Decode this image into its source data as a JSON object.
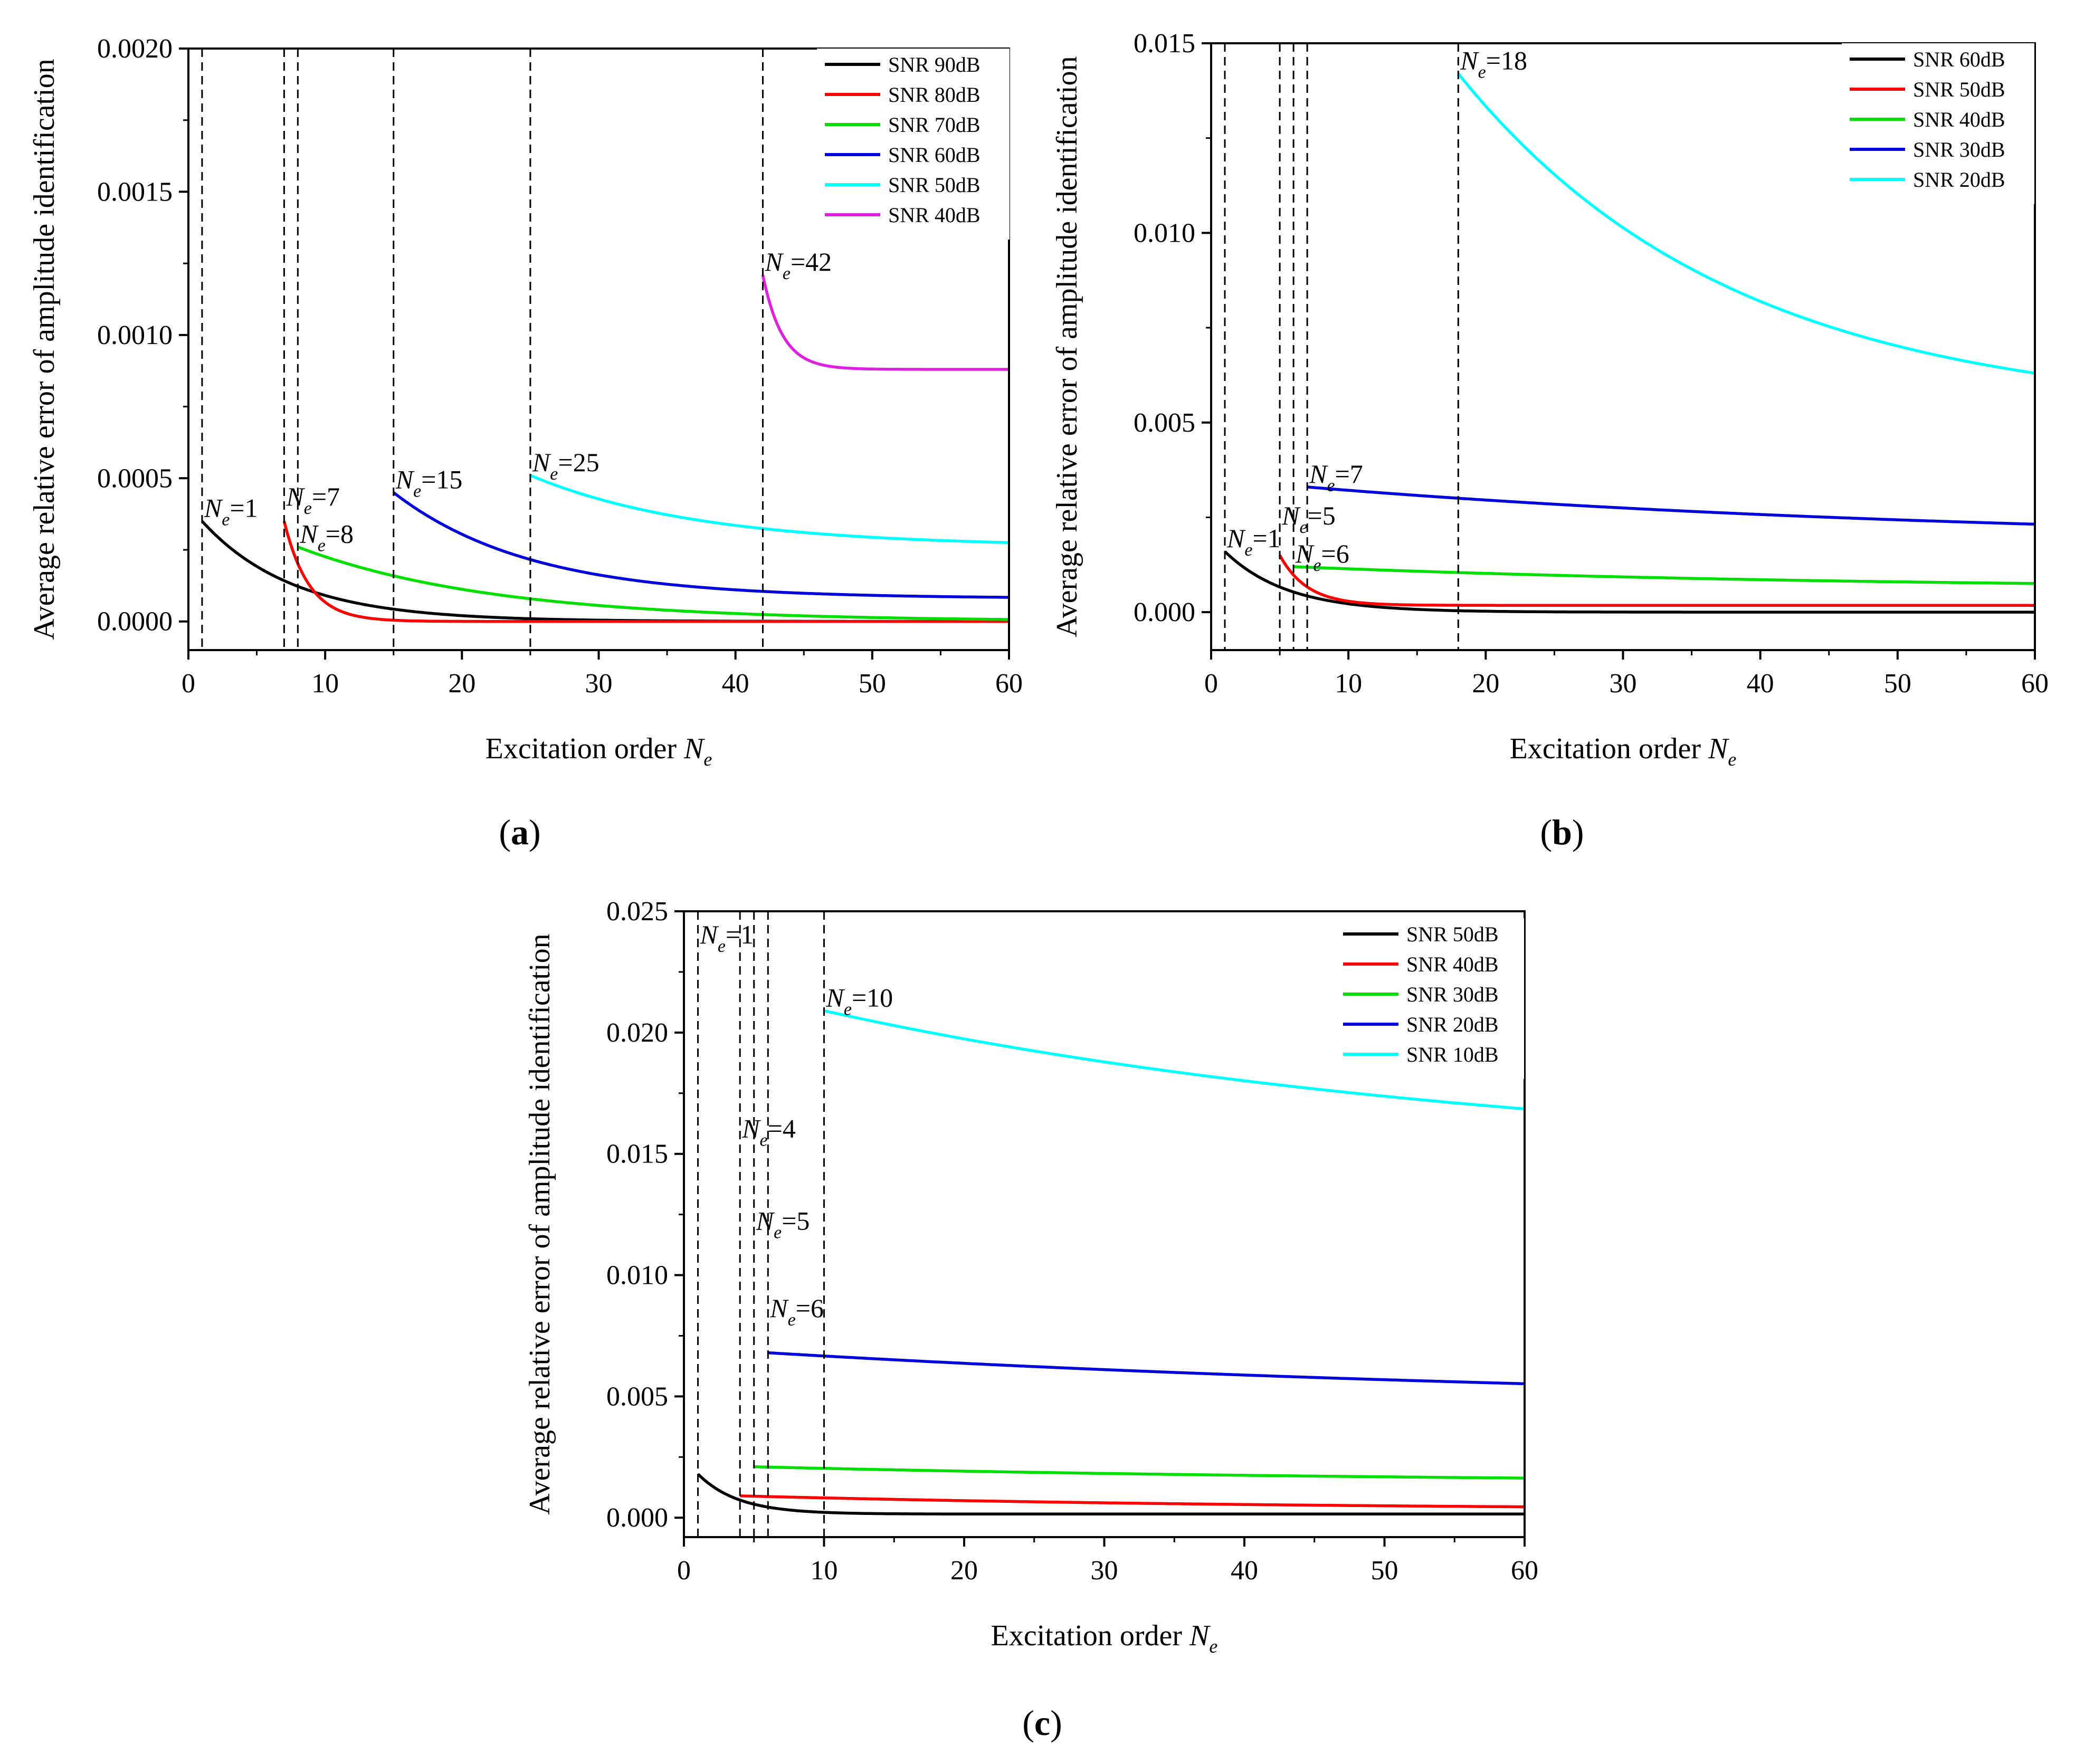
{
  "figure": {
    "panel_labels": [
      "a",
      "b",
      "c"
    ]
  },
  "chart_data": [
    {
      "id": "a",
      "type": "line",
      "xlabel_main": "Excitation order ",
      "xlabel_var": "N",
      "xlabel_sub": "e",
      "ylabel": "Average relative error of amplitude identification",
      "xlim": [
        0,
        60
      ],
      "ylim": [
        -0.0001,
        0.002
      ],
      "xticks": [
        0,
        10,
        20,
        30,
        40,
        50,
        60
      ],
      "xtick_labels": [
        "0",
        "10",
        "20",
        "30",
        "40",
        "50",
        "60"
      ],
      "yticks": [
        0,
        0.0005,
        0.001,
        0.0015,
        0.002
      ],
      "ytick_labels": [
        "0.0000",
        "0.0005",
        "0.0010",
        "0.0015",
        "0.0020"
      ],
      "vlines": [
        1,
        7,
        8,
        15,
        25,
        42
      ],
      "series": [
        {
          "name": "SNR 90dB",
          "color": "#000000",
          "x0": 1,
          "v0": 0.00035,
          "vinf": 0.0,
          "k": 0.15
        },
        {
          "name": "SNR 80dB",
          "color": "#ff0000",
          "x0": 7,
          "v0": 0.00035,
          "vinf": 0.0,
          "k": 0.55
        },
        {
          "name": "SNR 70dB",
          "color": "#00e000",
          "x0": 8,
          "v0": 0.00026,
          "vinf": 0.0,
          "k": 0.07
        },
        {
          "name": "SNR 60dB",
          "color": "#0000dd",
          "x0": 15,
          "v0": 0.00045,
          "vinf": 8e-05,
          "k": 0.1
        },
        {
          "name": "SNR 50dB",
          "color": "#00ffff",
          "x0": 25,
          "v0": 0.00051,
          "vinf": 0.00026,
          "k": 0.08
        },
        {
          "name": "SNR 40dB",
          "color": "#e020e0",
          "x0": 42,
          "v0": 0.00121,
          "vinf": 0.00088,
          "k": 0.7
        }
      ],
      "annotations": [
        {
          "x": 1,
          "y": 0.00035,
          "value": "1"
        },
        {
          "x": 7,
          "y": 0.00039,
          "value": "7"
        },
        {
          "x": 8,
          "y": 0.00026,
          "value": "8"
        },
        {
          "x": 15,
          "y": 0.00045,
          "value": "15"
        },
        {
          "x": 25,
          "y": 0.00051,
          "value": "25"
        },
        {
          "x": 42,
          "y": 0.00121,
          "value": "42"
        }
      ]
    },
    {
      "id": "b",
      "type": "line",
      "xlabel_main": "Excitation order ",
      "xlabel_var": "N",
      "xlabel_sub": "e",
      "ylabel": "Average relative error of amplitude identification",
      "xlim": [
        0,
        60
      ],
      "ylim": [
        -0.001,
        0.015
      ],
      "xticks": [
        0,
        10,
        20,
        30,
        40,
        50,
        60
      ],
      "xtick_labels": [
        "0",
        "10",
        "20",
        "30",
        "40",
        "50",
        "60"
      ],
      "yticks": [
        0,
        0.005,
        0.01,
        0.015
      ],
      "ytick_labels": [
        "0.000",
        "0.005",
        "0.010",
        "0.015"
      ],
      "vlines": [
        1,
        5,
        6,
        7,
        18
      ],
      "series": [
        {
          "name": "SNR 60dB",
          "color": "#000000",
          "x0": 1,
          "v0": 0.0016,
          "vinf": 0.0,
          "k": 0.22
        },
        {
          "name": "SNR 50dB",
          "color": "#ff0000",
          "x0": 5,
          "v0": 0.0015,
          "vinf": 0.00018,
          "k": 0.5
        },
        {
          "name": "SNR 40dB",
          "color": "#00e000",
          "x0": 6,
          "v0": 0.0012,
          "vinf": 0.0006,
          "k": 0.025
        },
        {
          "name": "SNR 30dB",
          "color": "#0000dd",
          "x0": 7,
          "v0": 0.0033,
          "vinf": 0.0018,
          "k": 0.02
        },
        {
          "name": "SNR 20dB",
          "color": "#00ffff",
          "x0": 18,
          "v0": 0.0142,
          "vinf": 0.0052,
          "k": 0.05
        }
      ],
      "annotations": [
        {
          "x": 1,
          "y": 0.0016,
          "value": "1"
        },
        {
          "x": 5,
          "y": 0.0022,
          "value": "5"
        },
        {
          "x": 6,
          "y": 0.0012,
          "value": "6"
        },
        {
          "x": 7,
          "y": 0.0033,
          "value": "7"
        },
        {
          "x": 18,
          "y": 0.0142,
          "value": "18"
        }
      ]
    },
    {
      "id": "c",
      "type": "line",
      "xlabel_main": "Excitation order ",
      "xlabel_var": "N",
      "xlabel_sub": "e",
      "ylabel": "Average relative error of amplitude identification",
      "xlim": [
        0,
        60
      ],
      "ylim": [
        -0.0008,
        0.025
      ],
      "xticks": [
        0,
        10,
        20,
        30,
        40,
        50,
        60
      ],
      "xtick_labels": [
        "0",
        "10",
        "20",
        "30",
        "40",
        "50",
        "60"
      ],
      "yticks": [
        0,
        0.005,
        0.01,
        0.015,
        0.02,
        0.025
      ],
      "ytick_labels": [
        "0.000",
        "0.005",
        "0.010",
        "0.015",
        "0.020",
        "0.025"
      ],
      "vlines": [
        1,
        4,
        5,
        6,
        10
      ],
      "series": [
        {
          "name": "SNR 50dB",
          "color": "#000000",
          "x0": 1,
          "v0": 0.0018,
          "vinf": 0.00015,
          "k": 0.35
        },
        {
          "name": "SNR 40dB",
          "color": "#ff0000",
          "x0": 4,
          "v0": 0.0009,
          "vinf": 0.0003,
          "k": 0.025
        },
        {
          "name": "SNR 30dB",
          "color": "#00e000",
          "x0": 5,
          "v0": 0.0021,
          "vinf": 0.0014,
          "k": 0.02
        },
        {
          "name": "SNR 20dB",
          "color": "#0000dd",
          "x0": 6,
          "v0": 0.0068,
          "vinf": 0.0045,
          "k": 0.015
        },
        {
          "name": "SNR 10dB",
          "color": "#00ffff",
          "x0": 10,
          "v0": 0.0209,
          "vinf": 0.0145,
          "k": 0.02
        }
      ],
      "annotations": [
        {
          "x": 1,
          "y": 0.0235,
          "value": "1"
        },
        {
          "x": 4,
          "y": 0.0155,
          "value": "4"
        },
        {
          "x": 5,
          "y": 0.0117,
          "value": "5"
        },
        {
          "x": 6,
          "y": 0.0081,
          "value": "6"
        },
        {
          "x": 10,
          "y": 0.0209,
          "value": "10"
        }
      ]
    }
  ]
}
